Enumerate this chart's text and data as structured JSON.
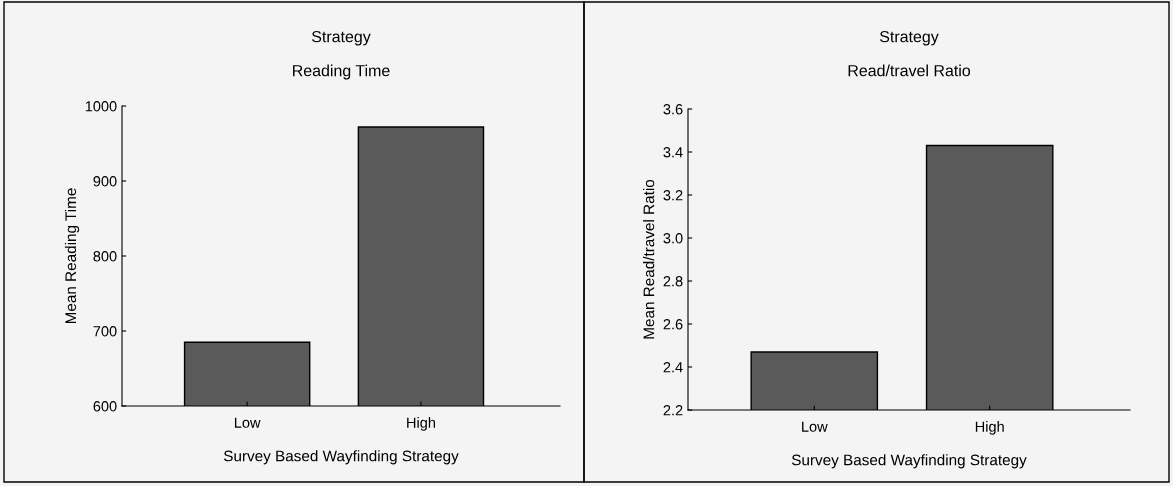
{
  "chart_data": [
    {
      "type": "bar",
      "title": "Strategy",
      "subtitle": "Reading Time",
      "xlabel": "Survey Based Wayfinding Strategy",
      "ylabel": "Mean Reading Time",
      "categories": [
        "Low",
        "High"
      ],
      "values": [
        685,
        972
      ],
      "color": "#5a5a5a",
      "ylim": [
        600,
        1000
      ],
      "yticks": [
        600,
        700,
        800,
        900,
        1000
      ],
      "grid": false,
      "legend": false
    },
    {
      "type": "bar",
      "title": "Strategy",
      "subtitle": "Read/travel Ratio",
      "xlabel": "Survey Based Wayfinding Strategy",
      "ylabel": "Mean Read/travel Ratio",
      "categories": [
        "Low",
        "High"
      ],
      "values": [
        2.47,
        3.43
      ],
      "color": "#5a5a5a",
      "ylim": [
        2.2,
        3.6
      ],
      "yticks": [
        2.2,
        2.4,
        2.6,
        2.8,
        {
          "value": 3.0,
          "label": "3.0"
        },
        3.2,
        3.4,
        3.6
      ],
      "grid": false,
      "legend": false
    }
  ]
}
